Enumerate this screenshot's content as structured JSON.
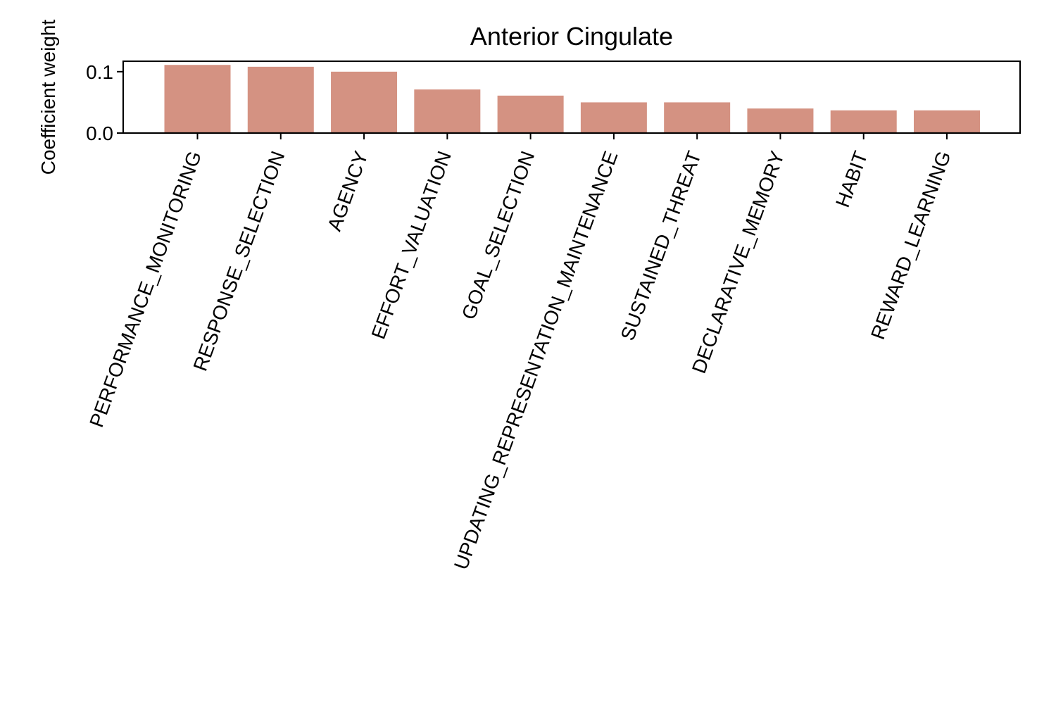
{
  "chart_data": {
    "type": "bar",
    "title": "Anterior Cingulate",
    "xlabel": "",
    "ylabel": "Coefficient weight",
    "categories": [
      "PERFORMANCE_MONITORING",
      "RESPONSE_SELECTION",
      "AGENCY",
      "EFFORT_VALUATION",
      "GOAL_SELECTION",
      "UPDATING_REPRESENTATION_MAINTENANCE",
      "SUSTAINED_THREAT",
      "DECLARATIVE_MEMORY",
      "HABIT",
      "REWARD_LEARNING"
    ],
    "values": [
      0.111,
      0.108,
      0.1,
      0.071,
      0.061,
      0.05,
      0.05,
      0.04,
      0.037,
      0.037
    ],
    "ylim": [
      0,
      0.117
    ],
    "yticks": [
      0.0,
      0.1
    ],
    "ytick_labels": [
      "0.0",
      "0.1"
    ],
    "bar_color": "#d49282",
    "grid": false,
    "legend": "none"
  }
}
